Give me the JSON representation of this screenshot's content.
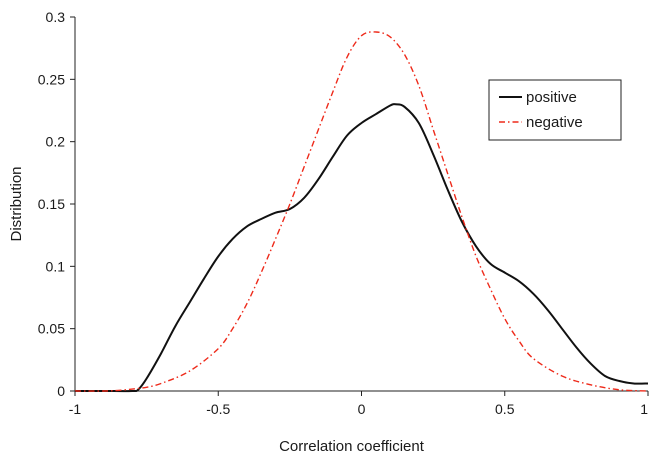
{
  "chart_data": {
    "type": "line",
    "title": "",
    "xlabel": "Correlation coefficient",
    "ylabel": "Distribution",
    "xlim": [
      -1,
      1
    ],
    "ylim": [
      0,
      0.3
    ],
    "x_ticks": [
      -1,
      -0.5,
      0,
      0.5,
      1
    ],
    "x_tick_labels": [
      "-1",
      "-0.5",
      "0",
      "0.5",
      "1"
    ],
    "y_ticks": [
      0,
      0.05,
      0.1,
      0.15,
      0.2,
      0.25,
      0.3
    ],
    "y_tick_labels": [
      "0",
      "0.05",
      "0.1",
      "0.15",
      "0.2",
      "0.25",
      "0.3"
    ],
    "grid": false,
    "legend_position": "top-right",
    "series": [
      {
        "name": "positive",
        "color": "#111111",
        "line_style": "solid",
        "x": [
          -1,
          -0.9,
          -0.8,
          -0.78,
          -0.75,
          -0.7,
          -0.65,
          -0.6,
          -0.55,
          -0.5,
          -0.45,
          -0.4,
          -0.35,
          -0.3,
          -0.25,
          -0.2,
          -0.15,
          -0.1,
          -0.05,
          0,
          0.05,
          0.1,
          0.12,
          0.15,
          0.2,
          0.25,
          0.3,
          0.35,
          0.4,
          0.45,
          0.5,
          0.55,
          0.6,
          0.65,
          0.7,
          0.75,
          0.8,
          0.85,
          0.9,
          0.95,
          1
        ],
        "y": [
          0,
          0,
          0,
          0.001,
          0.01,
          0.03,
          0.052,
          0.071,
          0.09,
          0.108,
          0.122,
          0.132,
          0.138,
          0.143,
          0.146,
          0.155,
          0.17,
          0.188,
          0.205,
          0.215,
          0.222,
          0.229,
          0.23,
          0.228,
          0.215,
          0.19,
          0.162,
          0.136,
          0.116,
          0.102,
          0.095,
          0.088,
          0.078,
          0.065,
          0.05,
          0.035,
          0.022,
          0.012,
          0.008,
          0.006,
          0.006
        ]
      },
      {
        "name": "negative",
        "color": "#ee2a1a",
        "line_style": "dash-dot",
        "x": [
          -1,
          -0.9,
          -0.85,
          -0.8,
          -0.75,
          -0.7,
          -0.6,
          -0.5,
          -0.45,
          -0.4,
          -0.35,
          -0.3,
          -0.25,
          -0.2,
          -0.15,
          -0.1,
          -0.05,
          0,
          0.05,
          0.1,
          0.15,
          0.2,
          0.25,
          0.3,
          0.35,
          0.4,
          0.45,
          0.5,
          0.55,
          0.6,
          0.7,
          0.8,
          0.9,
          1
        ],
        "y": [
          0,
          0,
          0.0005,
          0.0015,
          0.003,
          0.006,
          0.016,
          0.034,
          0.05,
          0.07,
          0.095,
          0.122,
          0.15,
          0.18,
          0.21,
          0.24,
          0.268,
          0.285,
          0.288,
          0.284,
          0.27,
          0.245,
          0.21,
          0.175,
          0.14,
          0.108,
          0.082,
          0.058,
          0.04,
          0.026,
          0.012,
          0.005,
          0.001,
          0
        ]
      }
    ]
  }
}
